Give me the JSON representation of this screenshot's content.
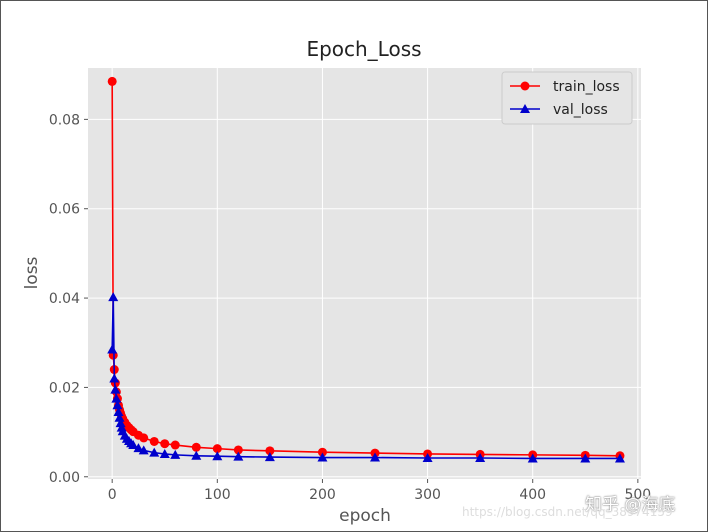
{
  "colors": {
    "background": "#e5e5e5",
    "grid": "#ffffff",
    "train": "#ff0000",
    "val": "#0000cc"
  },
  "chart_data": {
    "type": "line",
    "title": "Epoch_Loss",
    "xlabel": "epoch",
    "ylabel": "loss",
    "xlim": [
      -23,
      503
    ],
    "ylim": [
      -0.0005,
      0.0915
    ],
    "xticks": [
      0,
      100,
      200,
      300,
      400,
      500
    ],
    "yticks": [
      0.0,
      0.02,
      0.04,
      0.06,
      0.08
    ],
    "xtick_labels": [
      "0",
      "100",
      "200",
      "300",
      "400",
      "500"
    ],
    "ytick_labels": [
      "0.00",
      "0.02",
      "0.04",
      "0.06",
      "0.08"
    ],
    "grid": true,
    "legend_position": "top-right",
    "series": [
      {
        "name": "train_loss",
        "color": "#ff0000",
        "marker": "circle",
        "x": [
          0,
          1,
          2,
          3,
          4,
          5,
          6,
          7,
          8,
          9,
          10,
          12,
          14,
          16,
          18,
          20,
          25,
          30,
          40,
          50,
          60,
          80,
          100,
          120,
          150,
          200,
          250,
          300,
          350,
          400,
          450,
          483
        ],
        "y": [
          0.0885,
          0.0272,
          0.024,
          0.021,
          0.019,
          0.0175,
          0.016,
          0.015,
          0.0142,
          0.0135,
          0.013,
          0.0122,
          0.0115,
          0.011,
          0.0105,
          0.0101,
          0.0093,
          0.0087,
          0.0079,
          0.0074,
          0.0071,
          0.0066,
          0.0063,
          0.006,
          0.0058,
          0.0055,
          0.0053,
          0.0051,
          0.005,
          0.0049,
          0.0048,
          0.0047
        ]
      },
      {
        "name": "val_loss",
        "color": "#0000cc",
        "marker": "triangle",
        "x": [
          0,
          1,
          2,
          3,
          4,
          5,
          6,
          7,
          8,
          9,
          10,
          12,
          14,
          16,
          18,
          20,
          25,
          30,
          40,
          50,
          60,
          80,
          100,
          120,
          150,
          200,
          250,
          300,
          350,
          400,
          450,
          483
        ],
        "y": [
          0.0285,
          0.0402,
          0.022,
          0.0195,
          0.0175,
          0.016,
          0.0145,
          0.0132,
          0.012,
          0.011,
          0.0102,
          0.0092,
          0.0085,
          0.008,
          0.0075,
          0.0071,
          0.0064,
          0.0059,
          0.0054,
          0.0051,
          0.0049,
          0.0047,
          0.0046,
          0.0045,
          0.0044,
          0.0043,
          0.0043,
          0.0042,
          0.0042,
          0.0041,
          0.0041,
          0.0041
        ]
      }
    ]
  },
  "watermark": {
    "zhihu": "知乎 @海底",
    "csdn": "https://blog.csdn.net/qq_38974159"
  }
}
